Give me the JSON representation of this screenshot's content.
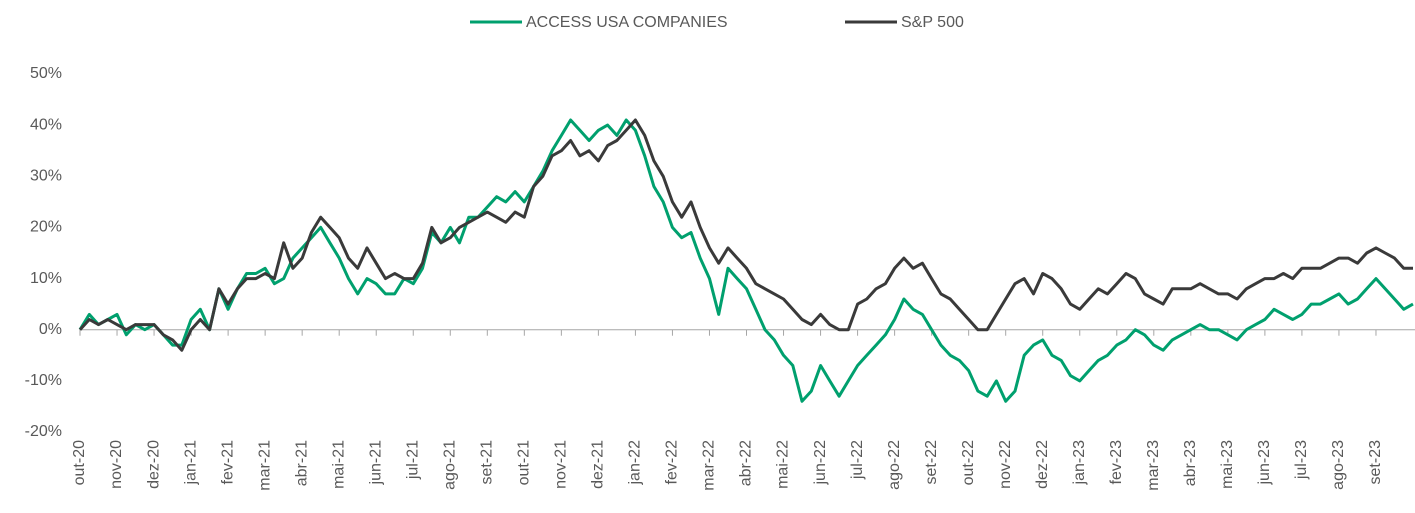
{
  "chart_data": {
    "type": "line",
    "categories": [
      "out-20",
      null,
      null,
      null,
      "nov-20",
      null,
      null,
      null,
      "dez-20",
      null,
      null,
      null,
      "jan-21",
      null,
      null,
      null,
      "fev-21",
      null,
      null,
      null,
      "mar-21",
      null,
      null,
      null,
      "abr-21",
      null,
      null,
      null,
      "mai-21",
      null,
      null,
      null,
      "jun-21",
      null,
      null,
      null,
      "jul-21",
      null,
      null,
      null,
      "ago-21",
      null,
      null,
      null,
      "set-21",
      null,
      null,
      null,
      "out-21",
      null,
      null,
      null,
      "nov-21",
      null,
      null,
      null,
      "dez-21",
      null,
      null,
      null,
      "jan-22",
      null,
      null,
      null,
      "fev-22",
      null,
      null,
      null,
      "mar-22",
      null,
      null,
      null,
      "abr-22",
      null,
      null,
      null,
      "mai-22",
      null,
      null,
      null,
      "jun-22",
      null,
      null,
      null,
      "jul-22",
      null,
      null,
      null,
      "ago-22",
      null,
      null,
      null,
      "set-22",
      null,
      null,
      null,
      "out-22",
      null,
      null,
      null,
      "nov-22",
      null,
      null,
      null,
      "dez-22",
      null,
      null,
      null,
      "jan-23",
      null,
      null,
      null,
      "fev-23",
      null,
      null,
      null,
      "mar-23",
      null,
      null,
      null,
      "abr-23",
      null,
      null,
      null,
      "mai-23",
      null,
      null,
      null,
      "jun-23",
      null,
      null,
      null,
      "jul-23",
      null,
      null,
      null,
      "ago-23",
      null,
      null,
      null,
      "set-23",
      null,
      null,
      null,
      null
    ],
    "series": [
      {
        "name": "ACCESS USA COMPANIES",
        "color": "#00a06e",
        "values": [
          0,
          3,
          1,
          2,
          3,
          -1,
          1,
          0,
          1,
          -1,
          -3,
          -3,
          2,
          4,
          0,
          8,
          4,
          8,
          11,
          11,
          12,
          9,
          10,
          14,
          16,
          18,
          20,
          17,
          14,
          10,
          7,
          10,
          9,
          7,
          7,
          10,
          9,
          12,
          19,
          17,
          20,
          17,
          22,
          22,
          24,
          26,
          25,
          27,
          25,
          28,
          31,
          35,
          38,
          41,
          39,
          37,
          39,
          40,
          38,
          41,
          39,
          34,
          28,
          25,
          20,
          18,
          19,
          14,
          10,
          3,
          12,
          10,
          8,
          4,
          0,
          -2,
          -5,
          -7,
          -14,
          -12,
          -7,
          -10,
          -13,
          -10,
          -7,
          -5,
          -3,
          -1,
          2,
          6,
          4,
          3,
          0,
          -3,
          -5,
          -6,
          -8,
          -12,
          -13,
          -10,
          -14,
          -12,
          -5,
          -3,
          -2,
          -5,
          -6,
          -9,
          -10,
          -8,
          -6,
          -5,
          -3,
          -2,
          0,
          -1,
          -3,
          -4,
          -2,
          -1,
          0,
          1,
          0,
          0,
          -1,
          -2,
          0,
          1,
          2,
          4,
          3,
          2,
          3,
          5,
          5,
          6,
          7,
          5,
          6,
          8,
          10,
          8,
          6,
          4,
          5
        ]
      },
      {
        "name": "S&P 500",
        "color": "#3a3a3a",
        "values": [
          0,
          2,
          1,
          2,
          1,
          0,
          1,
          1,
          1,
          -1,
          -2,
          -4,
          0,
          2,
          0,
          8,
          5,
          8,
          10,
          10,
          11,
          10,
          17,
          12,
          14,
          19,
          22,
          20,
          18,
          14,
          12,
          16,
          13,
          10,
          11,
          10,
          10,
          13,
          20,
          17,
          18,
          20,
          21,
          22,
          23,
          22,
          21,
          23,
          22,
          28,
          30,
          34,
          35,
          37,
          34,
          35,
          33,
          36,
          37,
          39,
          41,
          38,
          33,
          30,
          25,
          22,
          25,
          20,
          16,
          13,
          16,
          14,
          12,
          9,
          8,
          7,
          6,
          4,
          2,
          1,
          3,
          1,
          0,
          0,
          5,
          6,
          8,
          9,
          12,
          14,
          12,
          13,
          10,
          7,
          6,
          4,
          2,
          0,
          0,
          3,
          6,
          9,
          10,
          7,
          11,
          10,
          8,
          5,
          4,
          6,
          8,
          7,
          9,
          11,
          10,
          7,
          6,
          5,
          8,
          8,
          8,
          9,
          8,
          7,
          7,
          6,
          8,
          9,
          10,
          10,
          11,
          10,
          12,
          12,
          12,
          13,
          14,
          14,
          13,
          15,
          16,
          15,
          14,
          12,
          12
        ]
      }
    ],
    "ylim": [
      -20,
      50
    ],
    "yticks": [
      {
        "value": -20,
        "label": "-20%"
      },
      {
        "value": -10,
        "label": "-10%"
      },
      {
        "value": 0,
        "label": "0%"
      },
      {
        "value": 10,
        "label": "10%"
      },
      {
        "value": 20,
        "label": "20%"
      },
      {
        "value": 30,
        "label": "30%"
      },
      {
        "value": 40,
        "label": "40%"
      },
      {
        "value": 50,
        "label": "50%"
      }
    ],
    "legend": "top"
  }
}
